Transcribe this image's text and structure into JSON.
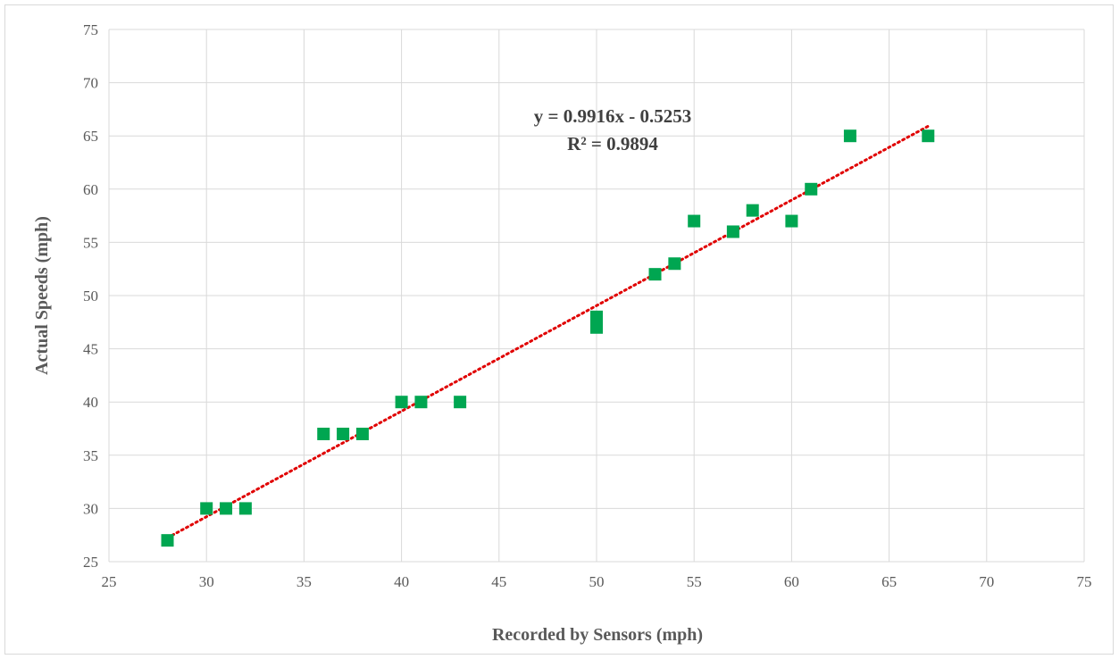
{
  "chart_data": {
    "type": "scatter",
    "title": "",
    "xlabel": "Recorded by Sensors (mph)",
    "ylabel": "Actual Speeds (mph)",
    "xlim": [
      25,
      75
    ],
    "ylim": [
      25,
      75
    ],
    "xticks": [
      25,
      30,
      35,
      40,
      45,
      50,
      55,
      60,
      65,
      70,
      75
    ],
    "yticks": [
      25,
      30,
      35,
      40,
      45,
      50,
      55,
      60,
      65,
      70,
      75
    ],
    "grid": true,
    "legend": "none",
    "series": [
      {
        "marker": "square",
        "color": "#00a651",
        "points": [
          [
            28,
            27
          ],
          [
            30,
            30
          ],
          [
            31,
            30
          ],
          [
            32,
            30
          ],
          [
            36,
            37
          ],
          [
            37,
            37
          ],
          [
            38,
            37
          ],
          [
            40,
            40
          ],
          [
            41,
            40
          ],
          [
            43,
            40
          ],
          [
            50,
            48
          ],
          [
            50,
            47
          ],
          [
            53,
            52
          ],
          [
            54,
            53
          ],
          [
            55,
            57
          ],
          [
            57,
            56
          ],
          [
            58,
            58
          ],
          [
            60,
            57
          ],
          [
            61,
            60
          ],
          [
            63,
            65
          ],
          [
            67,
            65
          ]
        ]
      }
    ],
    "trendline": {
      "type": "linear",
      "slope": 0.9916,
      "intercept": -0.5253,
      "x_range": [
        28,
        67
      ],
      "color": "#e00000",
      "style": "dotted",
      "equation_label": "y = 0.9916x - 0.5253",
      "r2_label": "R² = 0.9894"
    }
  }
}
